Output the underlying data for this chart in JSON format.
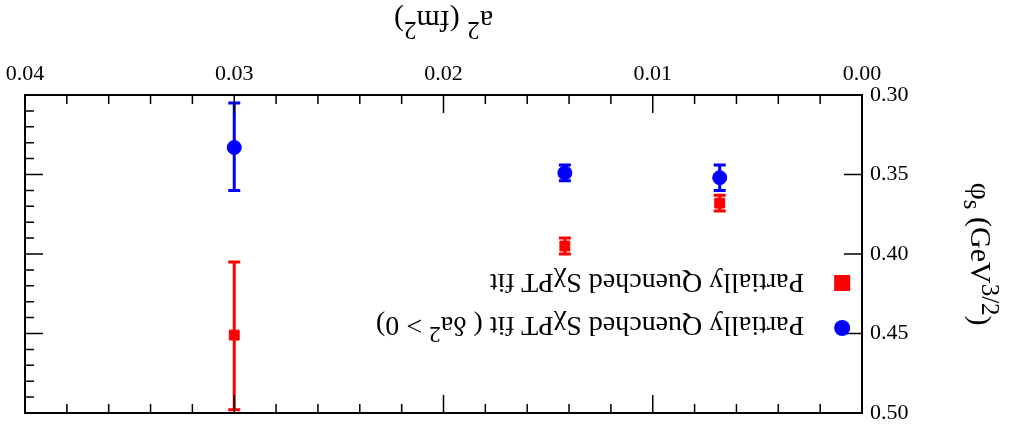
{
  "chart_data": {
    "type": "scatter",
    "xlabel": "a$^{2}$ (fm$^{2}$)",
    "ylabel": "φ$_{s}$ (GeV$^{3/2}$)",
    "xlim": [
      0.04,
      0
    ],
    "xticks": [
      {
        "value": 0,
        "label": "0.00"
      },
      0.01,
      0.02,
      0.03,
      0.04
    ],
    "ylim": [
      0.5,
      0.3
    ],
    "yticks": [
      {
        "value": 0.3,
        "label": "0.30"
      },
      0.35,
      {
        "value": 0.4,
        "label": "0.40"
      },
      0.45,
      {
        "value": 0.5,
        "label": "0.50"
      }
    ],
    "legend": "bottom right",
    "grid": false,
    "series": [
      {
        "name": "Partially Quenched SχPT fit",
        "color": "#ff0000",
        "marker": "square",
        "x": [
          0.0068,
          0.0142,
          0.03
        ],
        "values": [
          0.368,
          0.395,
          0.451
        ],
        "errors": [
          [
            0.363,
            0.373
          ],
          [
            0.39,
            0.4
          ],
          [
            0.405,
            0.498
          ]
        ]
      },
      {
        "name": "Partially Quenched SχPT fit ( δa$^{2}$ > 0)",
        "color": "#0000ff",
        "marker": "circle",
        "x": [
          0.0068,
          0.0142,
          0.03
        ],
        "values": [
          0.352,
          0.349,
          0.333
        ],
        "errors": [
          [
            0.344,
            0.36
          ],
          [
            0.344,
            0.354
          ],
          [
            0.305,
            0.36
          ]
        ]
      }
    ]
  }
}
